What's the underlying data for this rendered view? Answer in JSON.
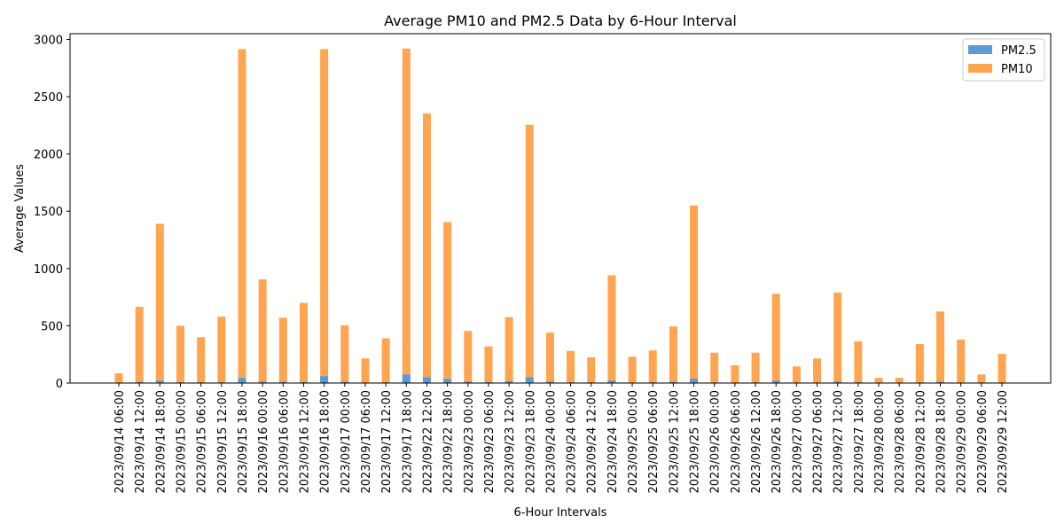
{
  "chart_data": {
    "type": "bar",
    "title": "Average PM10 and PM2.5 Data by 6-Hour Interval",
    "xlabel": "6-Hour Intervals",
    "ylabel": "Average Values",
    "ylim": [
      0,
      3050
    ],
    "yticks": [
      0,
      500,
      1000,
      1500,
      2000,
      2500,
      3000
    ],
    "grid": false,
    "legend_position": "top-right",
    "categories": [
      "2023/09/14 06:00",
      "2023/09/14 12:00",
      "2023/09/14 18:00",
      "2023/09/15 00:00",
      "2023/09/15 06:00",
      "2023/09/15 12:00",
      "2023/09/15 18:00",
      "2023/09/16 00:00",
      "2023/09/16 06:00",
      "2023/09/16 12:00",
      "2023/09/16 18:00",
      "2023/09/17 00:00",
      "2023/09/17 06:00",
      "2023/09/17 12:00",
      "2023/09/17 18:00",
      "2023/09/22 12:00",
      "2023/09/22 18:00",
      "2023/09/23 00:00",
      "2023/09/23 06:00",
      "2023/09/23 12:00",
      "2023/09/23 18:00",
      "2023/09/24 00:00",
      "2023/09/24 06:00",
      "2023/09/24 12:00",
      "2023/09/24 18:00",
      "2023/09/25 00:00",
      "2023/09/25 06:00",
      "2023/09/25 12:00",
      "2023/09/25 18:00",
      "2023/09/26 00:00",
      "2023/09/26 06:00",
      "2023/09/26 12:00",
      "2023/09/26 18:00",
      "2023/09/27 00:00",
      "2023/09/27 06:00",
      "2023/09/27 12:00",
      "2023/09/27 18:00",
      "2023/09/28 00:00",
      "2023/09/28 06:00",
      "2023/09/28 12:00",
      "2023/09/28 18:00",
      "2023/09/29 00:00",
      "2023/09/29 06:00",
      "2023/09/29 12:00"
    ],
    "series": [
      {
        "name": "PM2.5",
        "color": "#5b9bd5",
        "values": [
          3,
          8,
          20,
          6,
          5,
          6,
          45,
          12,
          10,
          8,
          60,
          10,
          3,
          5,
          75,
          50,
          35,
          12,
          8,
          15,
          50,
          12,
          6,
          5,
          22,
          4,
          6,
          10,
          38,
          5,
          3,
          5,
          20,
          3,
          4,
          12,
          6,
          1,
          1,
          4,
          10,
          4,
          1,
          4
        ]
      },
      {
        "name": "PM10",
        "color": "#ffa54f",
        "values": [
          85,
          665,
          1390,
          500,
          400,
          580,
          2915,
          905,
          570,
          700,
          2915,
          505,
          215,
          390,
          2920,
          2355,
          1405,
          455,
          320,
          575,
          2255,
          440,
          280,
          225,
          940,
          230,
          285,
          495,
          1550,
          265,
          155,
          265,
          780,
          145,
          215,
          790,
          365,
          45,
          45,
          340,
          625,
          380,
          75,
          255
        ]
      }
    ]
  }
}
